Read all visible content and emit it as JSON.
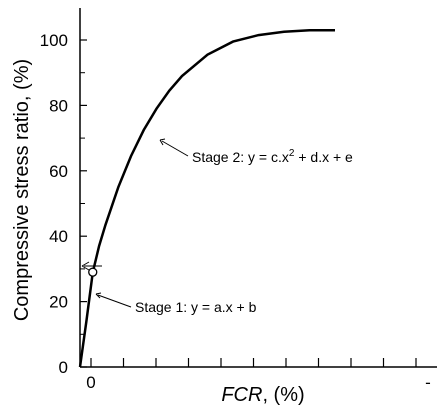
{
  "chart_data": {
    "type": "line",
    "title": "",
    "xlabel": {
      "italic": "FCR",
      "rest": ", (%)"
    },
    "ylabel": "Compressive stress ratio, (%)",
    "ylim": [
      0,
      110
    ],
    "yticks": [
      0,
      20,
      40,
      60,
      80,
      100
    ],
    "ytick_labels": [
      "0",
      "20",
      "40",
      "60",
      "80",
      "100"
    ],
    "xtick_labels": {
      "start": "0",
      "end": "-"
    },
    "grid": false,
    "legend": "none",
    "series": [
      {
        "x": [
          0,
          0.025,
          0.05,
          0.075,
          0.1,
          0.15,
          0.2,
          0.25,
          0.3,
          0.35,
          0.4,
          0.5,
          0.6,
          0.7,
          0.8,
          0.9,
          1.0
        ],
        "y": [
          0,
          14,
          29,
          37,
          43.5,
          55,
          64.5,
          72.5,
          79,
          84.5,
          89,
          95.5,
          99.5,
          101.5,
          102.5,
          103,
          103
        ]
      }
    ],
    "transition_point": {
      "x": 0.05,
      "y": 29
    },
    "annotations": {
      "stage1": "Stage 1: y = a.x + b",
      "stage2_main": "Stage 2: y = c.x",
      "stage2_sup": "2",
      "stage2_tail": " + d.x + e"
    },
    "colors": {
      "line": "#000000",
      "axis": "#000000",
      "marker_fill": "#ffffff"
    }
  }
}
